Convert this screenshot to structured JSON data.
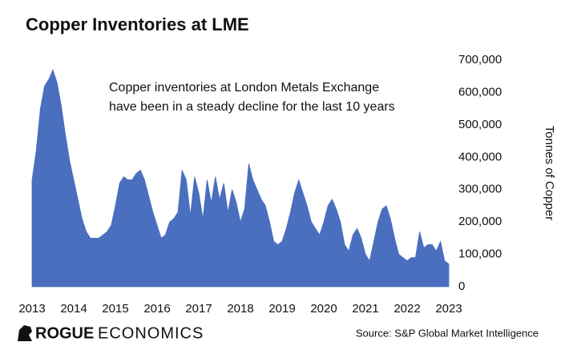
{
  "chart_data": {
    "type": "area",
    "title": "Copper Inventories at LME",
    "annotation": [
      "Copper inventories at London Metals Exchange",
      "have been in a steady decline for the last 10 years"
    ],
    "y_label": "Tonnes of Copper",
    "source": "Source: S&P Global Market Intelligence",
    "logo": [
      "ROGUE",
      "ECONOMICS"
    ],
    "color": "#4a6fbf",
    "xlim": [
      2013,
      2023
    ],
    "xticks": [
      2013,
      2014,
      2015,
      2016,
      2017,
      2018,
      2019,
      2020,
      2021,
      2022,
      2023
    ],
    "ylim": [
      0,
      700000
    ],
    "yticks": [
      0,
      {
        "value": 100000,
        "label": "100,000"
      },
      {
        "value": 200000,
        "label": "200,000"
      },
      {
        "value": 300000,
        "label": "300,000"
      },
      {
        "value": 400000,
        "label": "400,000"
      },
      {
        "value": 500000,
        "label": "500,000"
      },
      {
        "value": 600000,
        "label": "600,000"
      },
      {
        "value": 700000,
        "label": "700,000"
      }
    ],
    "x": [
      2013.0,
      2013.1,
      2013.2,
      2013.3,
      2013.4,
      2013.5,
      2013.6,
      2013.7,
      2013.8,
      2013.9,
      2014.0,
      2014.1,
      2014.2,
      2014.3,
      2014.4,
      2014.5,
      2014.6,
      2014.7,
      2014.8,
      2014.9,
      2015.0,
      2015.1,
      2015.2,
      2015.3,
      2015.4,
      2015.5,
      2015.6,
      2015.7,
      2015.8,
      2015.9,
      2016.0,
      2016.1,
      2016.2,
      2016.3,
      2016.4,
      2016.5,
      2016.6,
      2016.7,
      2016.8,
      2016.9,
      2017.0,
      2017.1,
      2017.2,
      2017.3,
      2017.4,
      2017.5,
      2017.6,
      2017.7,
      2017.8,
      2017.9,
      2018.0,
      2018.1,
      2018.2,
      2018.3,
      2018.4,
      2018.5,
      2018.6,
      2018.7,
      2018.8,
      2018.9,
      2019.0,
      2019.1,
      2019.2,
      2019.3,
      2019.4,
      2019.5,
      2019.6,
      2019.7,
      2019.8,
      2019.9,
      2020.0,
      2020.1,
      2020.2,
      2020.3,
      2020.4,
      2020.5,
      2020.6,
      2020.7,
      2020.8,
      2020.9,
      2021.0,
      2021.1,
      2021.2,
      2021.3,
      2021.4,
      2021.5,
      2021.6,
      2021.7,
      2021.8,
      2021.9,
      2022.0,
      2022.1,
      2022.2,
      2022.3,
      2022.4,
      2022.5,
      2022.6,
      2022.7,
      2022.8,
      2022.9,
      2023.0
    ],
    "values": [
      330000,
      420000,
      550000,
      620000,
      640000,
      670000,
      630000,
      560000,
      470000,
      390000,
      330000,
      270000,
      210000,
      170000,
      150000,
      150000,
      150000,
      160000,
      170000,
      190000,
      250000,
      320000,
      340000,
      330000,
      330000,
      350000,
      360000,
      330000,
      280000,
      230000,
      190000,
      150000,
      160000,
      200000,
      210000,
      230000,
      360000,
      330000,
      220000,
      340000,
      290000,
      210000,
      330000,
      260000,
      340000,
      270000,
      320000,
      230000,
      300000,
      260000,
      200000,
      240000,
      380000,
      330000,
      300000,
      270000,
      250000,
      200000,
      140000,
      130000,
      140000,
      180000,
      230000,
      290000,
      330000,
      290000,
      250000,
      200000,
      180000,
      160000,
      200000,
      250000,
      270000,
      240000,
      200000,
      130000,
      110000,
      160000,
      180000,
      150000,
      100000,
      80000,
      140000,
      200000,
      240000,
      250000,
      210000,
      150000,
      100000,
      90000,
      80000,
      90000,
      90000,
      170000,
      120000,
      130000,
      130000,
      110000,
      140000,
      80000,
      70000
    ]
  }
}
